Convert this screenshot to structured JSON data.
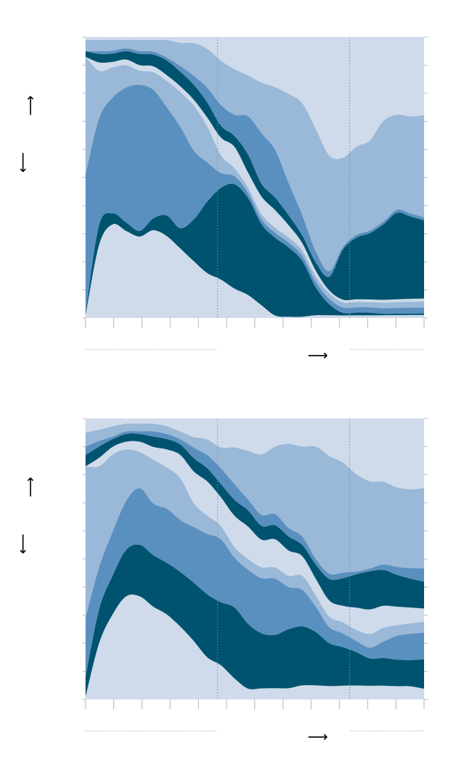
{
  "colors": {
    "light": "#cfdbea",
    "mid_light": "#9ab8d7",
    "mid": "#5a90bf",
    "dark": "#00536e",
    "gridline": "#7f8da0",
    "tick": "#b0b6bf",
    "arrow": "#000000"
  },
  "arrows": {
    "up": "⟶",
    "down": "⟶",
    "right": "⟶"
  },
  "chart_data": [
    {
      "type": "area",
      "title": "",
      "xlabel": "",
      "ylabel": "",
      "normalized": true,
      "ylim": [
        0,
        1
      ],
      "x": [
        0,
        0.04,
        0.08,
        0.12,
        0.16,
        0.2,
        0.24,
        0.28,
        0.32,
        0.36,
        0.4,
        0.44,
        0.48,
        0.52,
        0.56,
        0.6,
        0.64,
        0.68,
        0.72,
        0.76,
        0.8,
        0.84,
        0.88,
        0.92,
        0.96,
        1.0
      ],
      "reference_lines_x": [
        0.39,
        0.78
      ],
      "series": [
        {
          "color_key": "light",
          "values": [
            0.01,
            0.26,
            0.34,
            0.31,
            0.29,
            0.3,
            0.28,
            0.24,
            0.19,
            0.15,
            0.13,
            0.11,
            0.09,
            0.05,
            0.01,
            0.005,
            0.005,
            0.01,
            0.01,
            0.01,
            0.01,
            0.01,
            0.01,
            0.01,
            0.01,
            0.01
          ]
        },
        {
          "color_key": "dark",
          "values": [
            0.01,
            0.07,
            0.04,
            0.03,
            0.02,
            0.04,
            0.07,
            0.07,
            0.14,
            0.24,
            0.31,
            0.39,
            0.38,
            0.32,
            0.31,
            0.28,
            0.22,
            0.1,
            0.04,
            0.01,
            0.01,
            0.01,
            0.005,
            0.005,
            0.005,
            0.005
          ]
        },
        {
          "color_key": "mid",
          "values": [
            0.49,
            0.38,
            0.42,
            0.48,
            0.52,
            0.44,
            0.37,
            0.35,
            0.23,
            0.13,
            0.05,
            0.03,
            0.02,
            0.02,
            0.02,
            0.02,
            0.02,
            0.02,
            0.02,
            0.02,
            0.02,
            0.02,
            0.02,
            0.02,
            0.02,
            0.02
          ]
        },
        {
          "color_key": "mid_light",
          "values": [
            0.42,
            0.17,
            0.11,
            0.08,
            0.05,
            0.06,
            0.09,
            0.12,
            0.15,
            0.12,
            0.06,
            0.03,
            0.02,
            0.02,
            0.02,
            0.02,
            0.02,
            0.02,
            0.02,
            0.02,
            0.02,
            0.02,
            0.02,
            0.02,
            0.02,
            0.02
          ]
        },
        {
          "color_key": "light",
          "values": [
            0.0,
            0.03,
            0.02,
            0.02,
            0.02,
            0.02,
            0.02,
            0.02,
            0.02,
            0.03,
            0.06,
            0.08,
            0.06,
            0.07,
            0.07,
            0.05,
            0.03,
            0.02,
            0.01,
            0.01,
            0.01,
            0.01,
            0.01,
            0.01,
            0.01,
            0.01
          ]
        },
        {
          "color_key": "dark",
          "values": [
            0.02,
            0.03,
            0.03,
            0.03,
            0.04,
            0.04,
            0.05,
            0.05,
            0.05,
            0.05,
            0.04,
            0.04,
            0.07,
            0.05,
            0.05,
            0.04,
            0.03,
            0.03,
            0.05,
            0.19,
            0.23,
            0.25,
            0.27,
            0.3,
            0.28,
            0.26
          ]
        },
        {
          "color_key": "mid",
          "values": [
            0.0,
            0.01,
            0.01,
            0.01,
            0.01,
            0.01,
            0.01,
            0.02,
            0.03,
            0.05,
            0.07,
            0.08,
            0.15,
            0.2,
            0.19,
            0.13,
            0.08,
            0.04,
            0.02,
            0.01,
            0.01,
            0.01,
            0.01,
            0.01,
            0.01,
            0.01
          ]
        },
        {
          "color_key": "mid_light",
          "values": [
            0.04,
            0.04,
            0.04,
            0.03,
            0.04,
            0.04,
            0.06,
            0.08,
            0.11,
            0.13,
            0.15,
            0.17,
            0.16,
            0.2,
            0.25,
            0.36,
            0.44,
            0.44,
            0.42,
            0.34,
            0.33,
            0.34,
            0.36,
            0.33,
            0.33,
            0.34
          ]
        },
        {
          "color_key": "light",
          "values": [
            0.01,
            0.01,
            0.01,
            0.01,
            0.01,
            0.01,
            0.01,
            0.02,
            0.02,
            0.04,
            0.08,
            0.12,
            0.15,
            0.18,
            0.2,
            0.23,
            0.26,
            0.33,
            0.43,
            0.46,
            0.41,
            0.39,
            0.3,
            0.27,
            0.27,
            0.26
          ]
        }
      ]
    },
    {
      "type": "area",
      "title": "",
      "xlabel": "",
      "ylabel": "",
      "normalized": true,
      "ylim": [
        0,
        1
      ],
      "x": [
        0,
        0.04,
        0.08,
        0.12,
        0.16,
        0.2,
        0.24,
        0.28,
        0.32,
        0.36,
        0.4,
        0.44,
        0.48,
        0.52,
        0.56,
        0.6,
        0.64,
        0.68,
        0.72,
        0.76,
        0.8,
        0.84,
        0.88,
        0.92,
        0.96,
        1.0
      ],
      "reference_lines_x": [
        0.39,
        0.78
      ],
      "series": [
        {
          "color_key": "light",
          "values": [
            0.01,
            0.2,
            0.33,
            0.4,
            0.4,
            0.36,
            0.33,
            0.28,
            0.22,
            0.16,
            0.13,
            0.08,
            0.04,
            0.04,
            0.04,
            0.04,
            0.05,
            0.05,
            0.05,
            0.05,
            0.05,
            0.05,
            0.05,
            0.05,
            0.05,
            0.04
          ]
        },
        {
          "color_key": "dark",
          "values": [
            0.07,
            0.12,
            0.15,
            0.18,
            0.2,
            0.2,
            0.2,
            0.21,
            0.22,
            0.24,
            0.24,
            0.27,
            0.24,
            0.2,
            0.19,
            0.21,
            0.21,
            0.19,
            0.16,
            0.14,
            0.12,
            0.1,
            0.1,
            0.1,
            0.1,
            0.11
          ]
        },
        {
          "color_key": "mid",
          "values": [
            0.21,
            0.15,
            0.17,
            0.19,
            0.22,
            0.2,
            0.21,
            0.2,
            0.21,
            0.23,
            0.24,
            0.19,
            0.2,
            0.2,
            0.2,
            0.15,
            0.13,
            0.09,
            0.06,
            0.05,
            0.04,
            0.04,
            0.06,
            0.09,
            0.1,
            0.1
          ]
        },
        {
          "color_key": "mid_light",
          "values": [
            0.54,
            0.36,
            0.3,
            0.2,
            0.14,
            0.17,
            0.16,
            0.16,
            0.09,
            0.07,
            0.05,
            0.04,
            0.04,
            0.04,
            0.04,
            0.04,
            0.05,
            0.04,
            0.04,
            0.04,
            0.04,
            0.05,
            0.05,
            0.04,
            0.04,
            0.04
          ]
        },
        {
          "color_key": "light",
          "values": [
            0.0,
            0.03,
            0.03,
            0.03,
            0.04,
            0.05,
            0.07,
            0.09,
            0.12,
            0.13,
            0.11,
            0.12,
            0.12,
            0.1,
            0.1,
            0.09,
            0.07,
            0.06,
            0.06,
            0.06,
            0.08,
            0.09,
            0.08,
            0.07,
            0.06,
            0.05
          ]
        },
        {
          "color_key": "dark",
          "values": [
            0.04,
            0.04,
            0.03,
            0.03,
            0.03,
            0.04,
            0.04,
            0.04,
            0.05,
            0.05,
            0.05,
            0.06,
            0.06,
            0.05,
            0.05,
            0.05,
            0.04,
            0.05,
            0.08,
            0.1,
            0.12,
            0.14,
            0.13,
            0.12,
            0.11,
            0.1
          ]
        },
        {
          "color_key": "mid",
          "values": [
            0.03,
            0.02,
            0.01,
            0.01,
            0.01,
            0.02,
            0.02,
            0.02,
            0.04,
            0.05,
            0.06,
            0.06,
            0.04,
            0.04,
            0.04,
            0.03,
            0.03,
            0.02,
            0.02,
            0.02,
            0.01,
            0.01,
            0.02,
            0.03,
            0.04,
            0.05
          ]
        },
        {
          "color_key": "mid_light",
          "values": [
            0.05,
            0.04,
            0.04,
            0.03,
            0.03,
            0.03,
            0.03,
            0.03,
            0.04,
            0.06,
            0.08,
            0.14,
            0.18,
            0.22,
            0.24,
            0.3,
            0.32,
            0.4,
            0.44,
            0.4,
            0.35,
            0.32,
            0.3,
            0.3,
            0.3,
            0.3
          ]
        },
        {
          "color_key": "light",
          "values": [
            0.05,
            0.04,
            0.03,
            0.02,
            0.02,
            0.02,
            0.03,
            0.05,
            0.07,
            0.08,
            0.11,
            0.11,
            0.12,
            0.13,
            0.1,
            0.09,
            0.1,
            0.1,
            0.14,
            0.16,
            0.2,
            0.23,
            0.23,
            0.26,
            0.27,
            0.26
          ]
        }
      ]
    }
  ]
}
